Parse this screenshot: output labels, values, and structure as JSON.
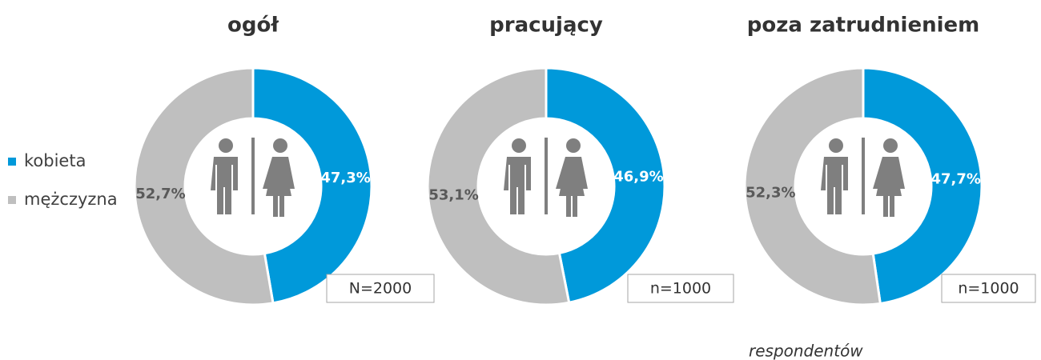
{
  "chart_data": [
    {
      "type": "donut",
      "title": "ogół",
      "categories": [
        "kobieta",
        "mężczyzna"
      ],
      "values": [
        47.3,
        52.7
      ],
      "value_labels": [
        "47,3%",
        "52,7%"
      ],
      "colors": [
        "#0099da",
        "#bfbfbf"
      ],
      "annotation": "N=2000"
    },
    {
      "type": "donut",
      "title": "pracujący",
      "categories": [
        "kobieta",
        "mężczyzna"
      ],
      "values": [
        46.9,
        53.1
      ],
      "value_labels": [
        "46,9%",
        "53,1%"
      ],
      "colors": [
        "#0099da",
        "#bfbfbf"
      ],
      "annotation": "n=1000"
    },
    {
      "type": "donut",
      "title": "poza zatrudnieniem",
      "categories": [
        "kobieta",
        "mężczyzna"
      ],
      "values": [
        47.7,
        52.3
      ],
      "value_labels": [
        "47,7%",
        "52,3%"
      ],
      "colors": [
        "#0099da",
        "#bfbfbf"
      ],
      "annotation": "n=1000"
    }
  ],
  "note": "respondentów"
}
